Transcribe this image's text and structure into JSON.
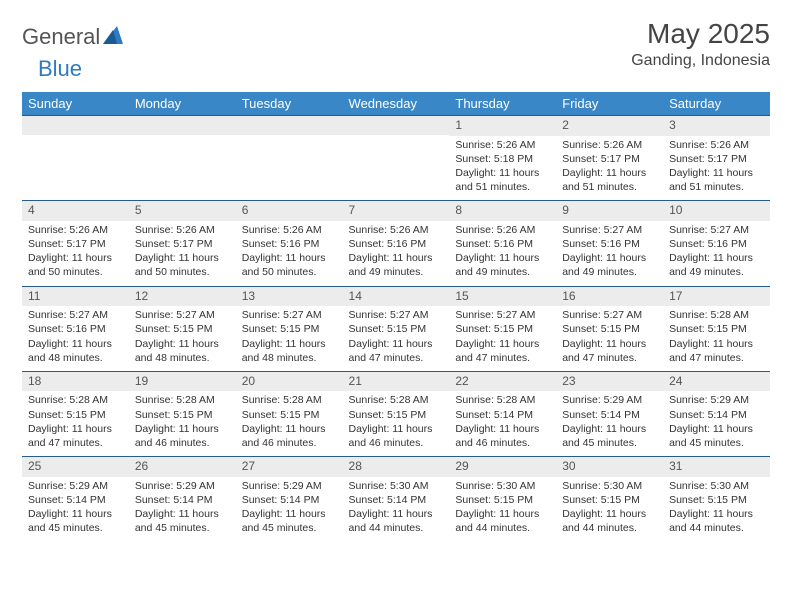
{
  "brand": {
    "name_a": "General",
    "name_b": "Blue"
  },
  "title": {
    "month": "May 2025",
    "location": "Ganding, Indonesia"
  },
  "theme": {
    "header_bg": "#3a87c8",
    "header_text": "#ffffff",
    "daynum_bg": "#ececec",
    "row_border": "#2a5a8a",
    "text_color": "#333333",
    "brand_gray": "#555555",
    "brand_blue": "#2e7cc0"
  },
  "weekday_labels": [
    "Sunday",
    "Monday",
    "Tuesday",
    "Wednesday",
    "Thursday",
    "Friday",
    "Saturday"
  ],
  "weeks": [
    [
      null,
      null,
      null,
      null,
      {
        "d": "1",
        "sunrise": "5:26 AM",
        "sunset": "5:18 PM",
        "daylight": "11 hours and 51 minutes."
      },
      {
        "d": "2",
        "sunrise": "5:26 AM",
        "sunset": "5:17 PM",
        "daylight": "11 hours and 51 minutes."
      },
      {
        "d": "3",
        "sunrise": "5:26 AM",
        "sunset": "5:17 PM",
        "daylight": "11 hours and 51 minutes."
      }
    ],
    [
      {
        "d": "4",
        "sunrise": "5:26 AM",
        "sunset": "5:17 PM",
        "daylight": "11 hours and 50 minutes."
      },
      {
        "d": "5",
        "sunrise": "5:26 AM",
        "sunset": "5:17 PM",
        "daylight": "11 hours and 50 minutes."
      },
      {
        "d": "6",
        "sunrise": "5:26 AM",
        "sunset": "5:16 PM",
        "daylight": "11 hours and 50 minutes."
      },
      {
        "d": "7",
        "sunrise": "5:26 AM",
        "sunset": "5:16 PM",
        "daylight": "11 hours and 49 minutes."
      },
      {
        "d": "8",
        "sunrise": "5:26 AM",
        "sunset": "5:16 PM",
        "daylight": "11 hours and 49 minutes."
      },
      {
        "d": "9",
        "sunrise": "5:27 AM",
        "sunset": "5:16 PM",
        "daylight": "11 hours and 49 minutes."
      },
      {
        "d": "10",
        "sunrise": "5:27 AM",
        "sunset": "5:16 PM",
        "daylight": "11 hours and 49 minutes."
      }
    ],
    [
      {
        "d": "11",
        "sunrise": "5:27 AM",
        "sunset": "5:16 PM",
        "daylight": "11 hours and 48 minutes."
      },
      {
        "d": "12",
        "sunrise": "5:27 AM",
        "sunset": "5:15 PM",
        "daylight": "11 hours and 48 minutes."
      },
      {
        "d": "13",
        "sunrise": "5:27 AM",
        "sunset": "5:15 PM",
        "daylight": "11 hours and 48 minutes."
      },
      {
        "d": "14",
        "sunrise": "5:27 AM",
        "sunset": "5:15 PM",
        "daylight": "11 hours and 47 minutes."
      },
      {
        "d": "15",
        "sunrise": "5:27 AM",
        "sunset": "5:15 PM",
        "daylight": "11 hours and 47 minutes."
      },
      {
        "d": "16",
        "sunrise": "5:27 AM",
        "sunset": "5:15 PM",
        "daylight": "11 hours and 47 minutes."
      },
      {
        "d": "17",
        "sunrise": "5:28 AM",
        "sunset": "5:15 PM",
        "daylight": "11 hours and 47 minutes."
      }
    ],
    [
      {
        "d": "18",
        "sunrise": "5:28 AM",
        "sunset": "5:15 PM",
        "daylight": "11 hours and 47 minutes."
      },
      {
        "d": "19",
        "sunrise": "5:28 AM",
        "sunset": "5:15 PM",
        "daylight": "11 hours and 46 minutes."
      },
      {
        "d": "20",
        "sunrise": "5:28 AM",
        "sunset": "5:15 PM",
        "daylight": "11 hours and 46 minutes."
      },
      {
        "d": "21",
        "sunrise": "5:28 AM",
        "sunset": "5:15 PM",
        "daylight": "11 hours and 46 minutes."
      },
      {
        "d": "22",
        "sunrise": "5:28 AM",
        "sunset": "5:14 PM",
        "daylight": "11 hours and 46 minutes."
      },
      {
        "d": "23",
        "sunrise": "5:29 AM",
        "sunset": "5:14 PM",
        "daylight": "11 hours and 45 minutes."
      },
      {
        "d": "24",
        "sunrise": "5:29 AM",
        "sunset": "5:14 PM",
        "daylight": "11 hours and 45 minutes."
      }
    ],
    [
      {
        "d": "25",
        "sunrise": "5:29 AM",
        "sunset": "5:14 PM",
        "daylight": "11 hours and 45 minutes."
      },
      {
        "d": "26",
        "sunrise": "5:29 AM",
        "sunset": "5:14 PM",
        "daylight": "11 hours and 45 minutes."
      },
      {
        "d": "27",
        "sunrise": "5:29 AM",
        "sunset": "5:14 PM",
        "daylight": "11 hours and 45 minutes."
      },
      {
        "d": "28",
        "sunrise": "5:30 AM",
        "sunset": "5:14 PM",
        "daylight": "11 hours and 44 minutes."
      },
      {
        "d": "29",
        "sunrise": "5:30 AM",
        "sunset": "5:15 PM",
        "daylight": "11 hours and 44 minutes."
      },
      {
        "d": "30",
        "sunrise": "5:30 AM",
        "sunset": "5:15 PM",
        "daylight": "11 hours and 44 minutes."
      },
      {
        "d": "31",
        "sunrise": "5:30 AM",
        "sunset": "5:15 PM",
        "daylight": "11 hours and 44 minutes."
      }
    ]
  ],
  "labels": {
    "sunrise": "Sunrise: ",
    "sunset": "Sunset: ",
    "daylight": "Daylight: "
  }
}
